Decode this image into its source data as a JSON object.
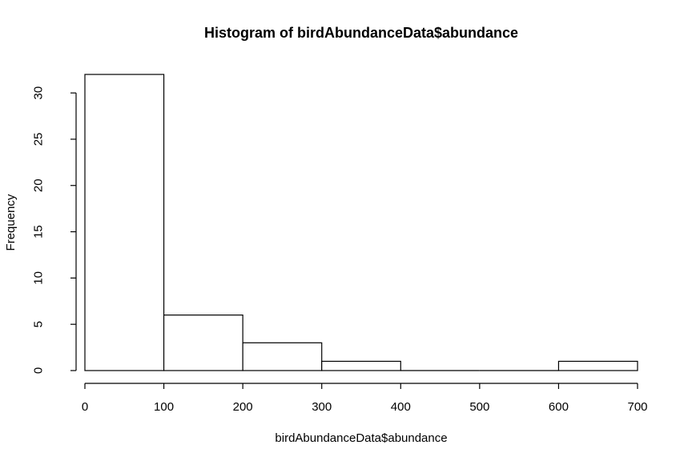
{
  "chart_data": {
    "type": "bar",
    "title": "Histogram of birdAbundanceData$abundance",
    "xlabel": "birdAbundanceData$abundance",
    "ylabel": "Frequency",
    "bins": [
      {
        "start": 0,
        "end": 100,
        "count": 32
      },
      {
        "start": 100,
        "end": 200,
        "count": 6
      },
      {
        "start": 200,
        "end": 300,
        "count": 3
      },
      {
        "start": 300,
        "end": 400,
        "count": 1
      },
      {
        "start": 400,
        "end": 500,
        "count": 0
      },
      {
        "start": 500,
        "end": 600,
        "count": 0
      },
      {
        "start": 600,
        "end": 700,
        "count": 1
      }
    ],
    "xlim": [
      0,
      700
    ],
    "ylim": [
      0,
      32
    ],
    "x_ticks": [
      0,
      100,
      200,
      300,
      400,
      500,
      600,
      700
    ],
    "y_ticks": [
      0,
      5,
      10,
      15,
      20,
      25,
      30
    ],
    "grid": false,
    "legend": "none"
  }
}
